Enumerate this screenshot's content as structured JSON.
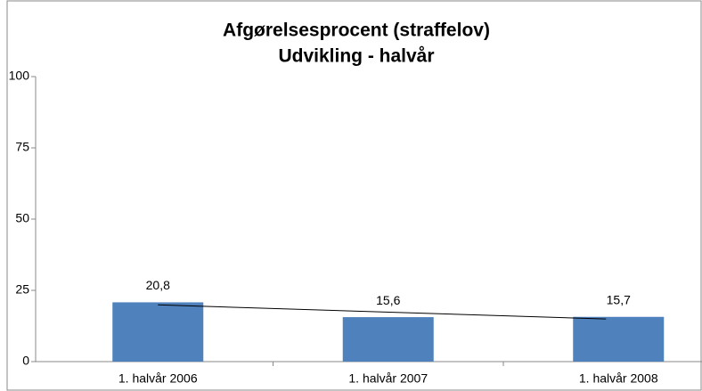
{
  "chart_data": {
    "type": "bar",
    "title": [
      "Afgørelsesprocent  (straffelov)",
      "Udvikling - halvår"
    ],
    "categories": [
      "1. halvår 2006",
      "1. halvår 2007",
      "1. halvår 2008"
    ],
    "values": [
      20.8,
      15.6,
      15.7
    ],
    "value_labels": [
      "20,8",
      "15,6",
      "15,7"
    ],
    "color": "#4f81bd",
    "trendline": true,
    "ylim": [
      0,
      100
    ],
    "yticks": [
      0,
      25,
      50,
      75,
      100
    ],
    "grid": false
  }
}
